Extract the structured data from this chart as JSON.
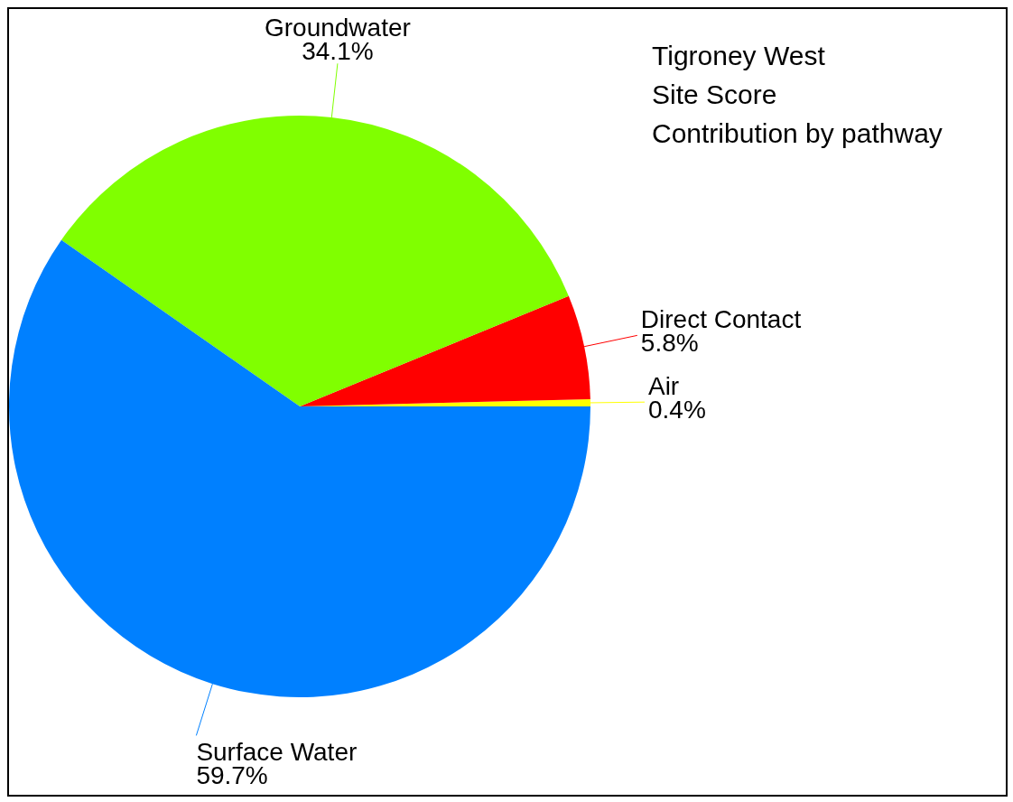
{
  "chart_data": {
    "type": "pie",
    "title": "Tigroney West\nSite Score\nContribution by pathway",
    "categories": [
      "Air",
      "Direct Contact",
      "Groundwater",
      "Surface Water"
    ],
    "values": [
      0.4,
      5.8,
      34.1,
      59.7
    ],
    "colors": [
      "#ffff00",
      "#ff0000",
      "#80ff00",
      "#0080ff"
    ],
    "value_labels": [
      "0.4%",
      "5.8%",
      "34.1%",
      "59.7%"
    ]
  }
}
